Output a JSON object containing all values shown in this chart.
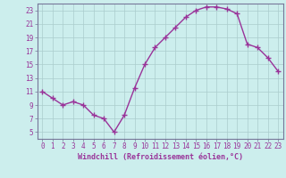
{
  "x": [
    0,
    1,
    2,
    3,
    4,
    5,
    6,
    7,
    8,
    9,
    10,
    11,
    12,
    13,
    14,
    15,
    16,
    17,
    18,
    19,
    20,
    21,
    22,
    23
  ],
  "y": [
    11,
    10,
    9,
    9.5,
    9,
    7.5,
    7,
    5,
    7.5,
    11.5,
    15,
    17.5,
    19,
    20.5,
    22,
    23,
    23.5,
    23.5,
    23.2,
    22.5,
    18,
    17.5,
    16,
    14
  ],
  "line_color": "#993399",
  "marker": "+",
  "marker_size": 4,
  "bg_color": "#cceeed",
  "grid_color": "#aacccc",
  "xlabel": "Windchill (Refroidissement éolien,°C)",
  "xlabel_color": "#993399",
  "tick_color": "#993399",
  "spine_color": "#777799",
  "ylim": [
    4,
    24
  ],
  "xlim": [
    -0.5,
    23.5
  ],
  "yticks": [
    5,
    7,
    9,
    11,
    13,
    15,
    17,
    19,
    21,
    23
  ],
  "xticks": [
    0,
    1,
    2,
    3,
    4,
    5,
    6,
    7,
    8,
    9,
    10,
    11,
    12,
    13,
    14,
    15,
    16,
    17,
    18,
    19,
    20,
    21,
    22,
    23
  ],
  "xtick_labels": [
    "0",
    "1",
    "2",
    "3",
    "4",
    "5",
    "6",
    "7",
    "8",
    "9",
    "10",
    "11",
    "12",
    "13",
    "14",
    "15",
    "16",
    "17",
    "18",
    "19",
    "20",
    "21",
    "22",
    "23"
  ],
  "ytick_labels": [
    "5",
    "7",
    "9",
    "11",
    "13",
    "15",
    "17",
    "19",
    "21",
    "23"
  ],
  "font_size": 5.5,
  "xlabel_fontsize": 6.0,
  "linewidth": 1.0
}
